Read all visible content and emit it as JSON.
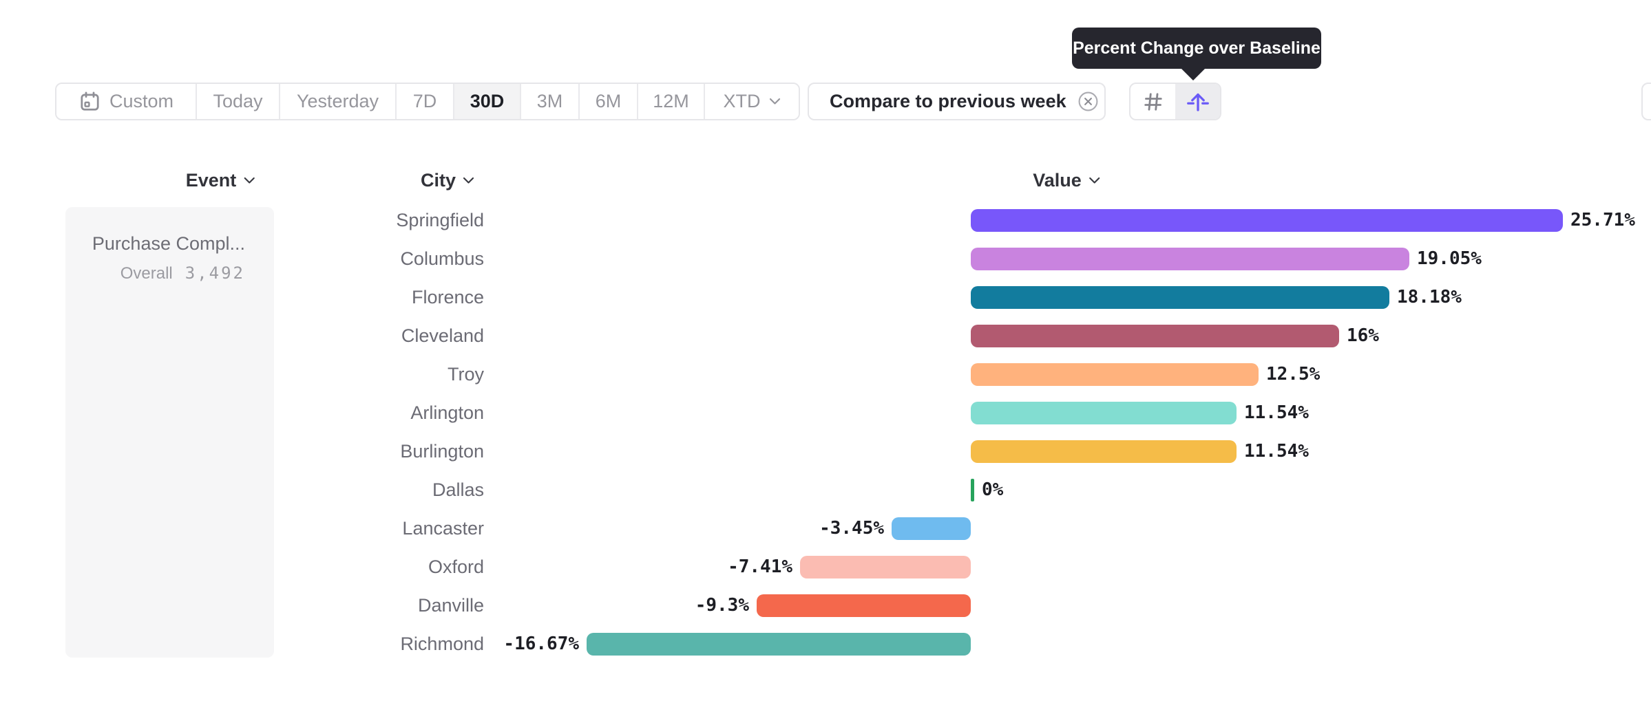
{
  "tooltip": {
    "text": "Percent Change over Baseline"
  },
  "toolbar": {
    "date_ranges": [
      {
        "label": "Custom",
        "icon": "calendar-icon",
        "selected": false
      },
      {
        "label": "Today",
        "selected": false
      },
      {
        "label": "Yesterday",
        "selected": false
      },
      {
        "label": "7D",
        "selected": false
      },
      {
        "label": "30D",
        "selected": true
      },
      {
        "label": "3M",
        "selected": false
      },
      {
        "label": "6M",
        "selected": false
      },
      {
        "label": "12M",
        "selected": false
      },
      {
        "label": "XTD",
        "selected": false,
        "chevron": true
      }
    ],
    "compare_chip": {
      "label": "Compare to previous week",
      "remove_icon": "circle-x-icon"
    },
    "view_toggle": {
      "buttons": [
        {
          "icon": "number-view-icon",
          "selected": false
        },
        {
          "icon": "percent-change-view-icon",
          "selected": true
        }
      ]
    }
  },
  "columns": {
    "event": "Event",
    "city": "City",
    "value": "Value"
  },
  "event_panel": {
    "title": "Purchase Compl...",
    "overall_label": "Overall",
    "overall_value": "3,492"
  },
  "chart_data": {
    "type": "bar",
    "orientation": "horizontal",
    "title": "Percent Change over Baseline",
    "unit": "%",
    "baseline": 0,
    "categories": [
      "Springfield",
      "Columbus",
      "Florence",
      "Cleveland",
      "Troy",
      "Arlington",
      "Burlington",
      "Dallas",
      "Lancaster",
      "Oxford",
      "Danville",
      "Richmond"
    ],
    "values": [
      25.71,
      19.05,
      18.18,
      16,
      12.5,
      11.54,
      11.54,
      0,
      -3.45,
      -7.41,
      -9.3,
      -16.67
    ],
    "value_labels": [
      "25.71%",
      "19.05%",
      "18.18%",
      "16%",
      "12.5%",
      "11.54%",
      "11.54%",
      "0%",
      "-3.45%",
      "-7.41%",
      "-9.3%",
      "-16.67%"
    ],
    "bar_colors": [
      "#7857FA",
      "#C983DF",
      "#127C9E",
      "#B25A70",
      "#FFB27D",
      "#82DDD1",
      "#F5BC48",
      "#27A35C",
      "#6FBBEF",
      "#FBBCB2",
      "#F4684C",
      "#59B5AB"
    ]
  },
  "accent_colors": {
    "selected_view_icon": "#6A5AF7",
    "tooltip_bg": "#26262E",
    "zero_tick_green": "#27A35C"
  }
}
